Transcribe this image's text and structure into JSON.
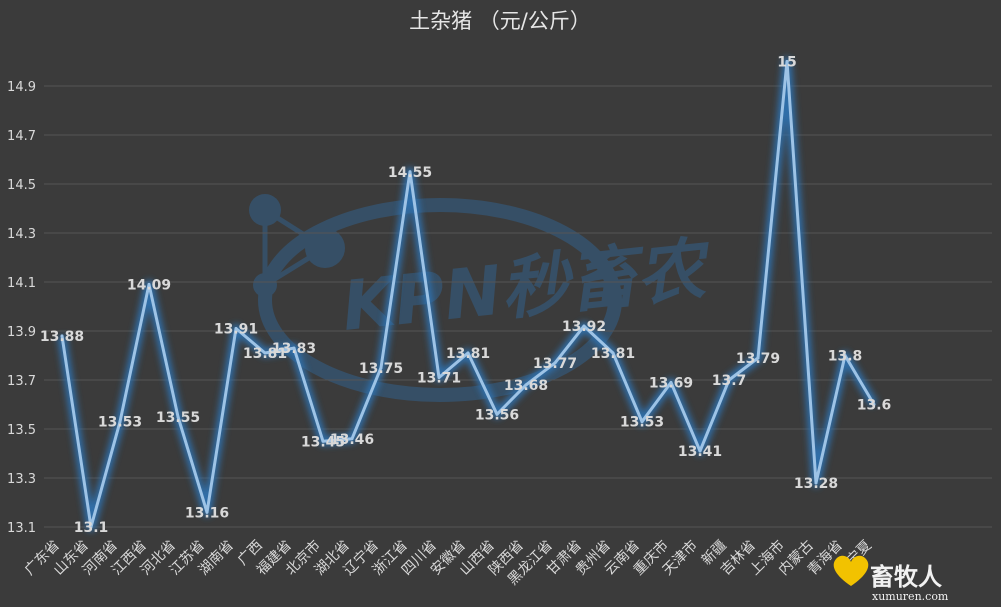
{
  "chart_data": {
    "type": "line",
    "title": "土杂猪    （元/公斤）",
    "xlabel": "",
    "ylabel": "",
    "ylim": [
      13.0,
      15.0
    ],
    "yticks": [
      13.1,
      13.3,
      13.5,
      13.7,
      13.9,
      14.1,
      14.3,
      14.5,
      14.7,
      14.9
    ],
    "grid": "horizontal",
    "legend": "none",
    "colors": {
      "line": "#9dc3e6",
      "glow": "#2e75b6",
      "background": "#3b3b3b",
      "grid": "#555555",
      "text": "#d9d9d9"
    },
    "categories": [
      "广东省",
      "山东省",
      "河南省",
      "江西省",
      "河北省",
      "江苏省",
      "湖南省",
      "广西",
      "福建省",
      "北京市",
      "湖北省",
      "辽宁省",
      "浙江省",
      "四川省",
      "安徽省",
      "山西省",
      "陕西省",
      "黑龙江省",
      "甘肃省",
      "贵州省",
      "云南省",
      "重庆市",
      "天津市",
      "新疆",
      "吉林省",
      "上海市",
      "内蒙古",
      "青海省",
      "宁夏"
    ],
    "series": [
      {
        "values": [
          13.88,
          13.1,
          13.53,
          14.09,
          13.55,
          13.16,
          13.91,
          13.81,
          13.83,
          13.45,
          13.46,
          13.75,
          14.55,
          13.71,
          13.81,
          13.56,
          13.68,
          13.77,
          13.92,
          13.81,
          13.53,
          13.69,
          13.41,
          13.7,
          13.79,
          15,
          13.28,
          13.8,
          13.6
        ]
      }
    ],
    "data_labels": [
      "13.88",
      "13.1",
      "13.53",
      "14.09",
      "13.55",
      "13.16",
      "13.91",
      "13.81",
      "13.83",
      "13.45",
      "13.46",
      "13.75",
      "14.55",
      "13.71",
      "13.81",
      "13.56",
      "13.68",
      "13.77",
      "13.92",
      "13.81",
      "13.53",
      "13.69",
      "13.41",
      "13.7",
      "13.79",
      "15",
      "13.28",
      "13.8",
      "13.6"
    ]
  },
  "watermark": {
    "text": "KPN秒畜农"
  },
  "logo": {
    "brand": "畜牧人",
    "url": "xumuren.com"
  }
}
